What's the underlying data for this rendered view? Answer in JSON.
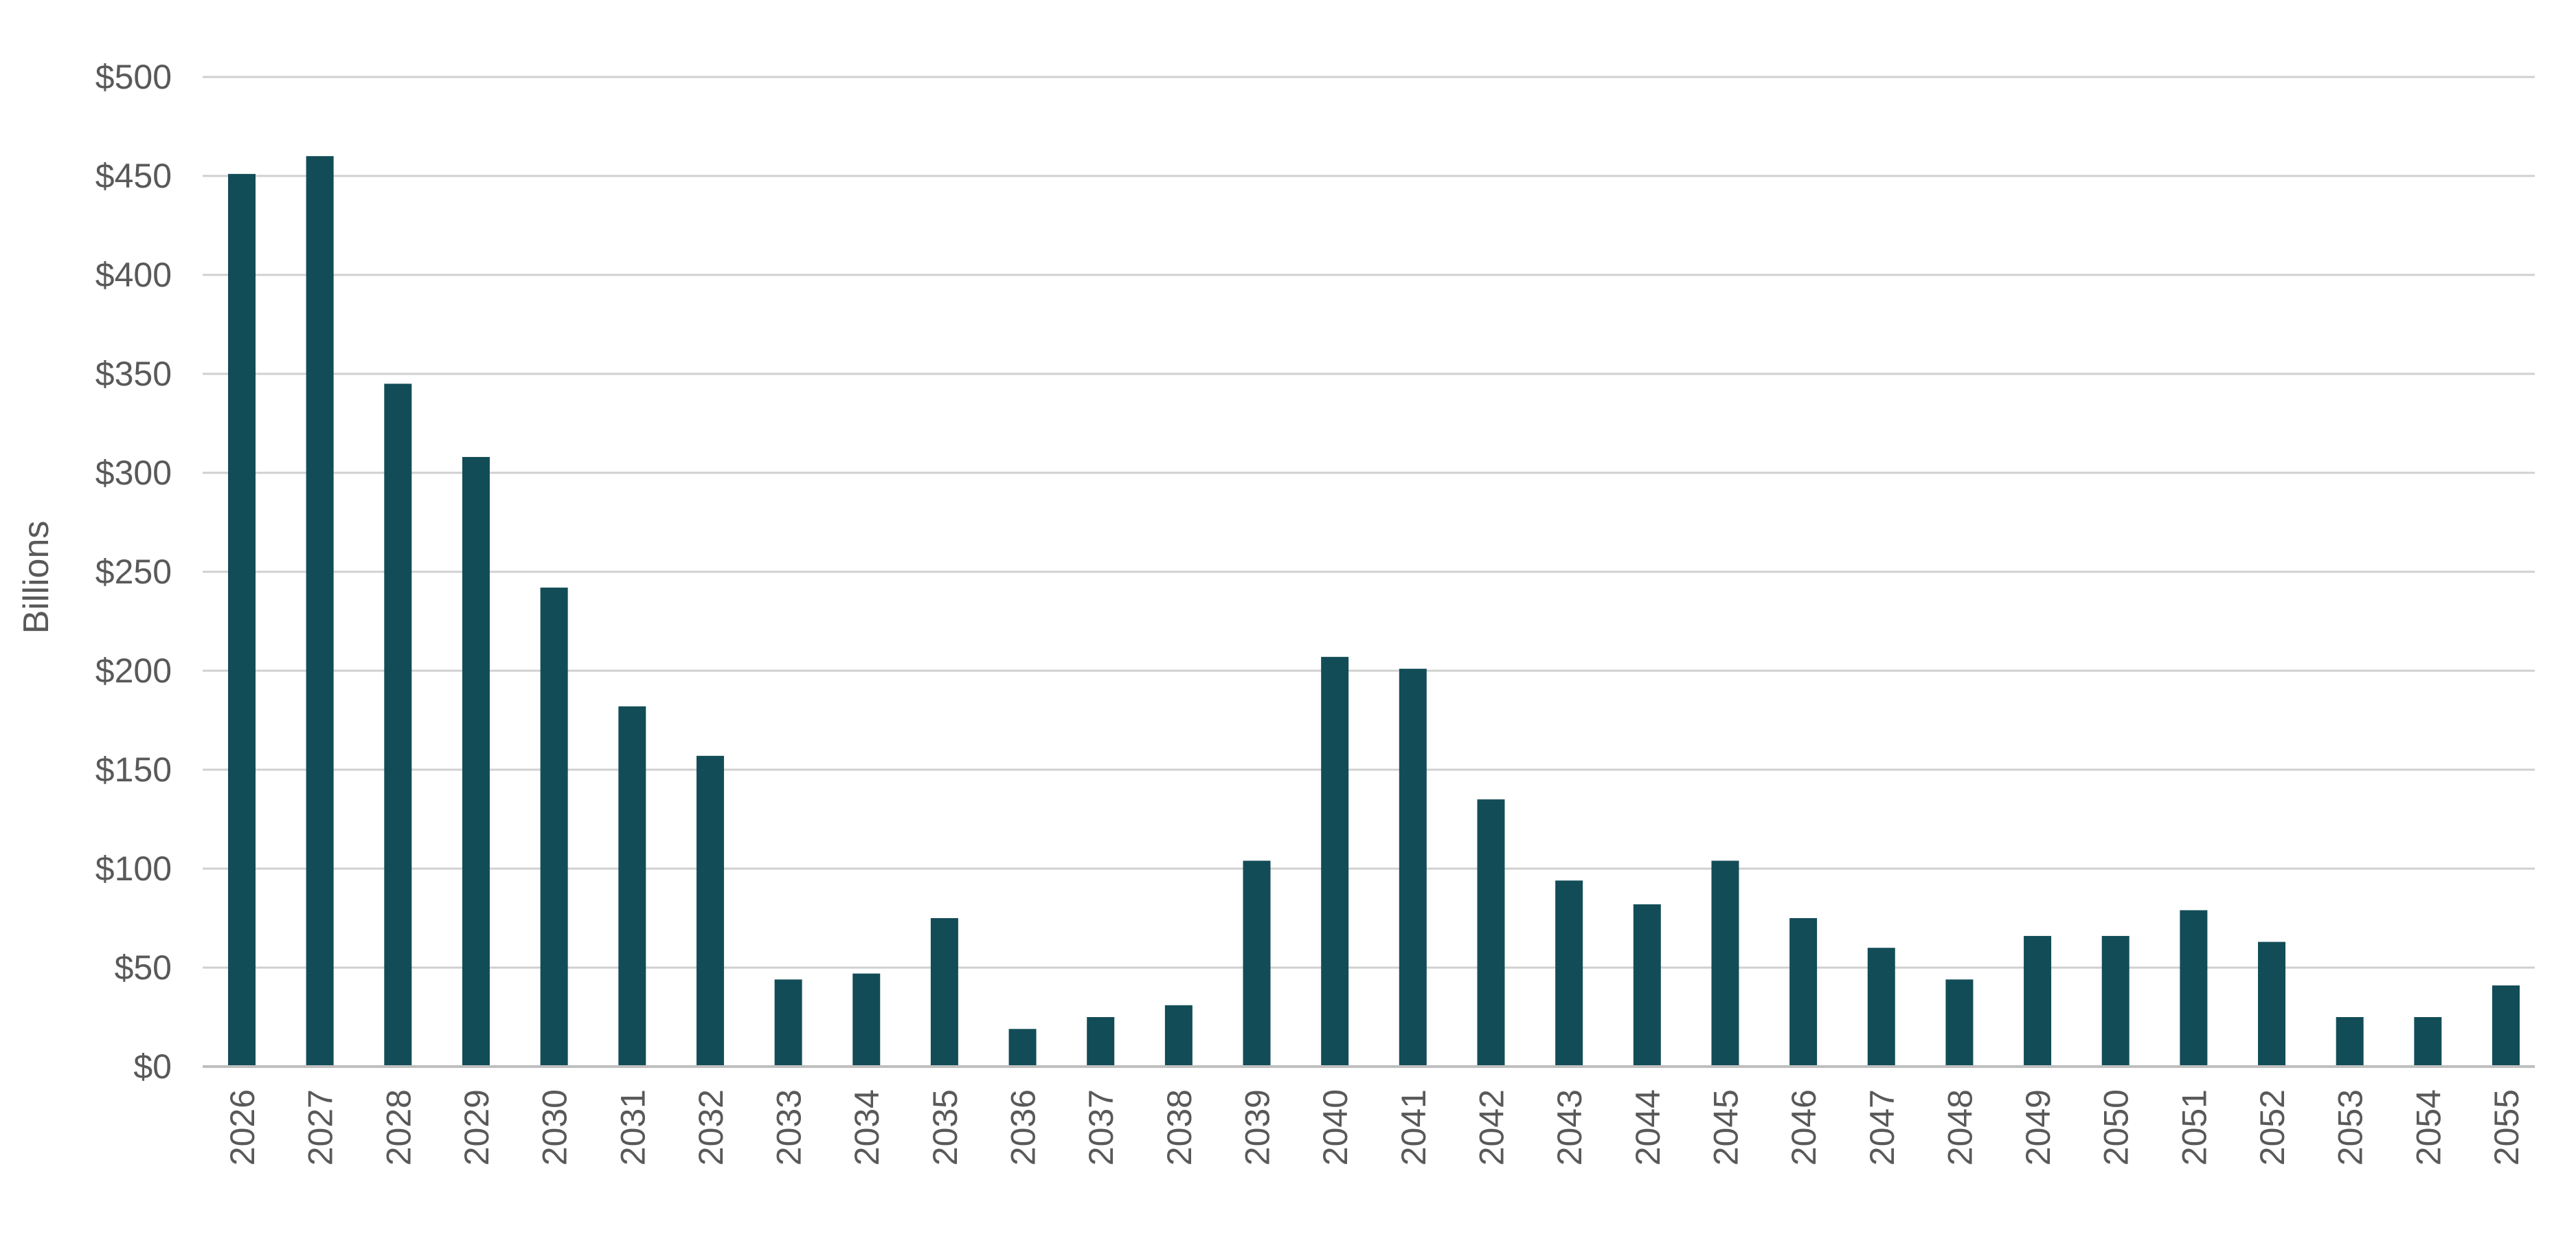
{
  "chart_data": {
    "type": "bar",
    "title": "",
    "xlabel": "",
    "ylabel": "Billions",
    "ylim": [
      0,
      500
    ],
    "yticks": [
      0,
      50,
      100,
      150,
      200,
      250,
      300,
      350,
      400,
      450,
      500
    ],
    "ytick_labels": [
      "$0",
      "$50",
      "$100",
      "$150",
      "$200",
      "$250",
      "$300",
      "$350",
      "$400",
      "$450",
      "$500"
    ],
    "grid": true,
    "legend": "none",
    "bar_color": "#124d57",
    "categories": [
      "2026",
      "2027",
      "2028",
      "2029",
      "2030",
      "2031",
      "2032",
      "2033",
      "2034",
      "2035",
      "2036",
      "2037",
      "2038",
      "2039",
      "2040",
      "2041",
      "2042",
      "2043",
      "2044",
      "2045",
      "2046",
      "2047",
      "2048",
      "2049",
      "2050",
      "2051",
      "2052",
      "2053",
      "2054",
      "2055"
    ],
    "values": [
      451,
      460,
      345,
      308,
      242,
      182,
      157,
      44,
      47,
      75,
      19,
      25,
      31,
      104,
      207,
      201,
      135,
      94,
      82,
      104,
      75,
      60,
      44,
      66,
      66,
      79,
      63,
      25,
      25,
      41
    ]
  }
}
